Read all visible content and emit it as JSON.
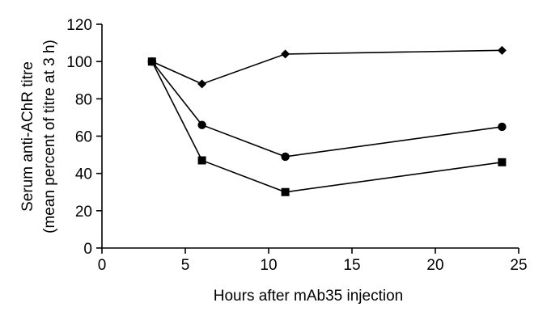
{
  "chart_data": {
    "type": "line",
    "title": "",
    "xlabel": "Hours after mAb35 injection",
    "ylabel_lines": [
      "Serum anti-AChR titre",
      "(mean percent of titre at 3 h)"
    ],
    "xlim": [
      0,
      25
    ],
    "ylim": [
      0,
      120
    ],
    "xticks": [
      0,
      5,
      10,
      15,
      20,
      25
    ],
    "yticks": [
      0,
      20,
      40,
      60,
      80,
      100,
      120
    ],
    "grid": false,
    "legend": "none",
    "x": [
      3,
      6,
      11,
      24
    ],
    "series": [
      {
        "marker": "diamond",
        "color": "#000000",
        "values": [
          100,
          88,
          104,
          106
        ]
      },
      {
        "marker": "circle",
        "color": "#000000",
        "values": [
          100,
          66,
          49,
          65
        ]
      },
      {
        "marker": "square",
        "color": "#000000",
        "values": [
          100,
          47,
          30,
          46
        ]
      }
    ]
  }
}
